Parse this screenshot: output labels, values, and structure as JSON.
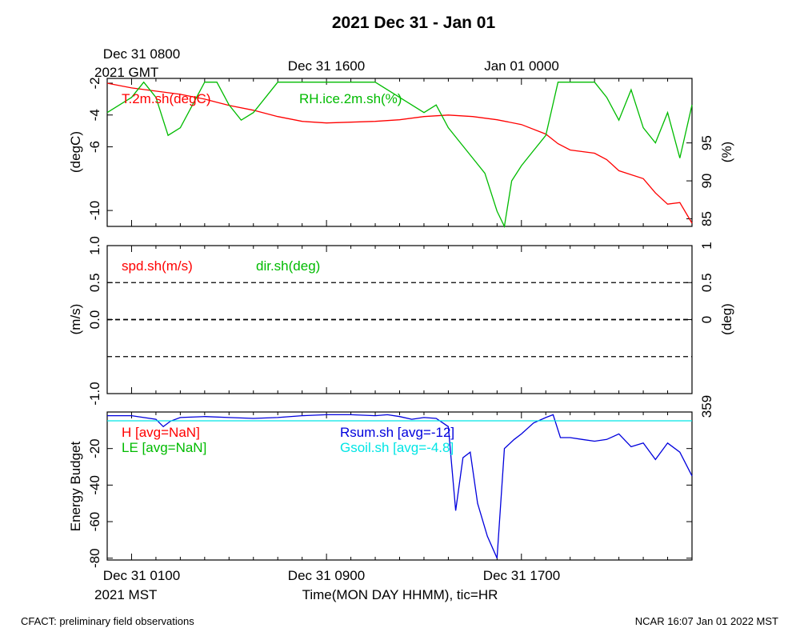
{
  "title": "2021 Dec 31 - Jan 01",
  "footer_left": "CFACT: preliminary field observations",
  "footer_right": "NCAR 16:07 Jan 01 2022 MST",
  "top_axis": {
    "ticks": [
      {
        "label": "Dec 31 0800",
        "hour": 0
      },
      {
        "label": "Dec 31 1600",
        "hour": 8
      },
      {
        "label": "Jan 01 0000",
        "hour": 16
      }
    ],
    "zone_label": "2021 GMT"
  },
  "bottom_axis": {
    "ticks": [
      {
        "label": "Dec 31 0100",
        "hour": 0
      },
      {
        "label": "Dec 31 0900",
        "hour": 8
      },
      {
        "label": "Dec 31 1700",
        "hour": 16
      }
    ],
    "zone_label": "2021 MST",
    "xlabel": "Time(MON DAY HHMM), tic=HR"
  },
  "chart_data": [
    {
      "type": "line",
      "panel": "temperature-humidity",
      "x_unit": "hours since Dec 31 0100 MST",
      "xlim": [
        -1,
        23
      ],
      "ylabel_left": "(degC)",
      "ylabel_right": "(%)",
      "ylim_left": [
        -11,
        -1.7
      ],
      "yticks_left": [
        -2,
        -4,
        -6,
        -10
      ],
      "ylim_right": [
        84,
        103.5
      ],
      "yticks_right": [
        85,
        90,
        95
      ],
      "series": [
        {
          "name": "T.2m.sh(degC)",
          "axis": "left",
          "color": "#ff0000",
          "x": [
            -1,
            0,
            1,
            2,
            3,
            4,
            5,
            6,
            7,
            8,
            9,
            10,
            11,
            12,
            13,
            14,
            15,
            16,
            17,
            17.5,
            18,
            19,
            19.5,
            20,
            21,
            21.5,
            22,
            22.5,
            23
          ],
          "y": [
            -2,
            -2.3,
            -2.5,
            -2.7,
            -3.0,
            -3.4,
            -3.7,
            -4.1,
            -4.4,
            -4.5,
            -4.45,
            -4.4,
            -4.3,
            -4.1,
            -4.0,
            -4.1,
            -4.3,
            -4.6,
            -5.2,
            -5.8,
            -6.2,
            -6.4,
            -6.8,
            -7.5,
            -8.0,
            -8.9,
            -9.6,
            -9.5,
            -10.8
          ]
        },
        {
          "name": "RH.ice.2m.sh(%)",
          "axis": "right",
          "color": "#00bb00",
          "x": [
            -1,
            0,
            0.5,
            1,
            1.5,
            2,
            2.5,
            3,
            3.5,
            4,
            4.5,
            5,
            5.5,
            6,
            7,
            8,
            9,
            10,
            11,
            12,
            12.5,
            13,
            13.5,
            14,
            14.5,
            15,
            15.3,
            15.6,
            16,
            16.5,
            17,
            17.5,
            18,
            18.5,
            19,
            19.5,
            20,
            20.5,
            21,
            21.5,
            22,
            22.5,
            23
          ],
          "y": [
            99,
            101,
            103,
            101,
            96,
            97,
            100,
            103,
            103,
            100,
            98,
            99,
            101,
            103,
            103,
            103,
            103,
            103,
            101,
            99,
            100,
            97,
            95,
            93,
            91,
            86,
            84,
            90,
            92,
            94,
            96,
            103,
            103,
            103,
            103,
            101,
            98,
            102,
            97,
            95,
            99,
            93,
            100
          ]
        }
      ]
    },
    {
      "type": "line",
      "panel": "wind",
      "x_unit": "hours since Dec 31 0100 MST",
      "xlim": [
        -1,
        23
      ],
      "ylabel_left": "(m/s)",
      "ylabel_right": "(deg)",
      "ylim_left": [
        -1.0,
        1.0
      ],
      "yticks_left": [
        "1.0",
        "0.5",
        "0.0",
        "-1.0"
      ],
      "yticks_right": [
        "1",
        "0.5",
        "0",
        "359"
      ],
      "reference_lines": [
        0.5,
        0.0,
        -0.5
      ],
      "series": [
        {
          "name": "spd.sh(m/s)",
          "color": "#ff0000",
          "x": [],
          "y": []
        },
        {
          "name": "dir.sh(deg)",
          "color": "#00bb00",
          "x": [],
          "y": []
        }
      ]
    },
    {
      "type": "line",
      "panel": "energy-budget",
      "x_unit": "hours since Dec 31 0100 MST",
      "xlim": [
        -1,
        23
      ],
      "ylabel": "Energy Budget",
      "ylim": [
        -81,
        0
      ],
      "yticks": [
        -20,
        -40,
        -60,
        -80
      ],
      "series": [
        {
          "name": "H [avg=NaN]",
          "color": "#ff0000",
          "x": [],
          "y": []
        },
        {
          "name": "LE [avg=NaN]",
          "color": "#00bb00",
          "x": [],
          "y": []
        },
        {
          "name": "Rsum.sh [avg=-12]",
          "color": "#0000dd",
          "x": [
            -1,
            0,
            0.5,
            1,
            1.3,
            1.6,
            2,
            3,
            4,
            5,
            6,
            7,
            8,
            9,
            10,
            10.5,
            11,
            11.5,
            12,
            12.5,
            13,
            13.3,
            13.6,
            13.9,
            14.2,
            14.6,
            15,
            15.3,
            15.7,
            16,
            16.5,
            17,
            17.3,
            17.6,
            18,
            18.5,
            19,
            19.5,
            20,
            20.5,
            21,
            21.5,
            22,
            22.5,
            23
          ],
          "y": [
            -2,
            -2,
            -3,
            -4,
            -8,
            -5,
            -3,
            -2.5,
            -3,
            -3.5,
            -3,
            -2,
            -1.5,
            -1.5,
            -2,
            -1.5,
            -2.5,
            -4,
            -3,
            -3.5,
            -8,
            -54,
            -25,
            -22,
            -50,
            -68,
            -80,
            -20,
            -15,
            -12,
            -6,
            -3,
            -1.5,
            -14,
            -14,
            -15,
            -16,
            -15,
            -12,
            -19,
            -17,
            -26,
            -17,
            -22,
            -35
          ]
        },
        {
          "name": "Gsoil.sh [avg=-4.8]",
          "color": "#00e5e5",
          "x": [
            -1,
            23
          ],
          "y": [
            -4.8,
            -4.8
          ]
        }
      ]
    }
  ]
}
